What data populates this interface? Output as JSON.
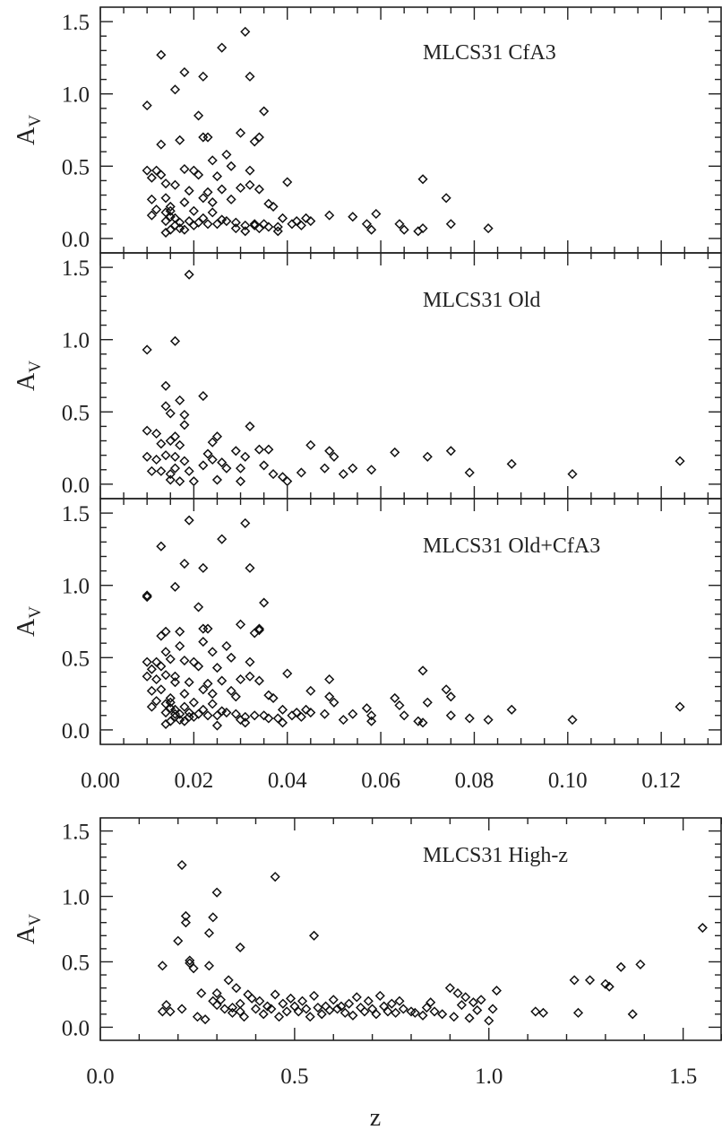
{
  "chart_data": [
    {
      "type": "scatter",
      "label": "MLCS31 CfA3",
      "ylabel": "A",
      "ylabel_sub": "V",
      "xlim": [
        0.0,
        0.133
      ],
      "ylim": [
        -0.1,
        1.6
      ],
      "xticks": [],
      "yticks": [
        "0.0",
        "0.5",
        "1.0",
        "1.5"
      ],
      "series": [
        {
          "x": [
            0.01,
            0.01,
            0.011,
            0.011,
            0.011,
            0.012,
            0.012,
            0.013,
            0.013,
            0.014,
            0.014,
            0.014,
            0.014,
            0.014,
            0.015,
            0.015,
            0.015,
            0.015,
            0.016,
            0.016,
            0.016,
            0.017,
            0.017,
            0.017,
            0.018,
            0.018,
            0.018,
            0.019,
            0.019,
            0.02,
            0.02,
            0.02,
            0.021,
            0.021,
            0.022,
            0.022,
            0.022,
            0.023,
            0.023,
            0.023,
            0.024,
            0.024,
            0.024,
            0.025,
            0.025,
            0.026,
            0.026,
            0.027,
            0.027,
            0.028,
            0.028,
            0.029,
            0.029,
            0.03,
            0.03,
            0.031,
            0.031,
            0.032,
            0.032,
            0.033,
            0.033,
            0.033,
            0.034,
            0.034,
            0.034,
            0.035,
            0.035,
            0.036,
            0.036,
            0.037,
            0.038,
            0.038,
            0.039,
            0.04,
            0.041,
            0.042,
            0.043,
            0.044,
            0.045,
            0.049,
            0.054,
            0.057,
            0.058,
            0.059,
            0.064,
            0.065,
            0.068,
            0.069,
            0.069,
            0.074,
            0.075,
            0.083,
            0.016,
            0.018,
            0.022,
            0.031,
            0.026,
            0.021,
            0.013,
            0.032
          ],
          "y": [
            0.92,
            0.47,
            0.42,
            0.27,
            0.16,
            0.47,
            0.2,
            0.65,
            0.44,
            0.12,
            0.18,
            0.38,
            0.28,
            0.04,
            0.15,
            0.22,
            0.19,
            0.06,
            0.09,
            0.14,
            0.37,
            0.68,
            0.11,
            0.07,
            0.25,
            0.48,
            0.06,
            0.33,
            0.12,
            0.09,
            0.19,
            0.47,
            0.44,
            0.11,
            0.7,
            0.28,
            0.14,
            0.7,
            0.1,
            0.32,
            0.54,
            0.18,
            0.25,
            0.1,
            0.43,
            0.13,
            0.34,
            0.58,
            0.12,
            0.27,
            0.5,
            0.11,
            0.07,
            0.73,
            0.35,
            0.05,
            0.09,
            0.47,
            0.37,
            0.67,
            0.1,
            0.09,
            0.7,
            0.34,
            0.07,
            0.88,
            0.1,
            0.24,
            0.08,
            0.22,
            0.08,
            0.05,
            0.14,
            0.39,
            0.1,
            0.12,
            0.09,
            0.14,
            0.12,
            0.16,
            0.15,
            0.1,
            0.06,
            0.17,
            0.1,
            0.06,
            0.05,
            0.07,
            0.41,
            0.28,
            0.1,
            0.07,
            1.03,
            1.15,
            1.12,
            1.43,
            1.32,
            0.85,
            1.27,
            1.12
          ],
          "marker": "diamond"
        }
      ]
    },
    {
      "type": "scatter",
      "label": "MLCS31 Old",
      "ylabel": "A",
      "ylabel_sub": "V",
      "xlim": [
        0.0,
        0.133
      ],
      "ylim": [
        -0.1,
        1.6
      ],
      "xticks": [],
      "yticks": [
        "0.0",
        "0.5",
        "1.0",
        "1.5"
      ],
      "series": [
        {
          "x": [
            0.01,
            0.01,
            0.011,
            0.012,
            0.012,
            0.013,
            0.013,
            0.014,
            0.014,
            0.015,
            0.015,
            0.015,
            0.016,
            0.016,
            0.016,
            0.017,
            0.017,
            0.017,
            0.018,
            0.018,
            0.019,
            0.02,
            0.022,
            0.022,
            0.023,
            0.024,
            0.024,
            0.025,
            0.025,
            0.026,
            0.027,
            0.029,
            0.03,
            0.03,
            0.031,
            0.032,
            0.034,
            0.035,
            0.036,
            0.037,
            0.039,
            0.04,
            0.043,
            0.045,
            0.048,
            0.049,
            0.05,
            0.052,
            0.054,
            0.058,
            0.063,
            0.07,
            0.075,
            0.079,
            0.088,
            0.101,
            0.124,
            0.019,
            0.016,
            0.01,
            0.014,
            0.018,
            0.015
          ],
          "y": [
            0.37,
            0.19,
            0.09,
            0.35,
            0.17,
            0.28,
            0.09,
            0.54,
            0.2,
            0.49,
            0.07,
            0.3,
            0.33,
            0.11,
            0.19,
            0.58,
            0.27,
            0.02,
            0.16,
            0.48,
            0.09,
            0.02,
            0.61,
            0.13,
            0.21,
            0.29,
            0.17,
            0.03,
            0.33,
            0.15,
            0.11,
            0.23,
            0.02,
            0.11,
            0.19,
            0.4,
            0.24,
            0.13,
            0.24,
            0.07,
            0.05,
            0.02,
            0.08,
            0.27,
            0.11,
            0.23,
            0.19,
            0.07,
            0.11,
            0.1,
            0.22,
            0.19,
            0.23,
            0.08,
            0.14,
            0.07,
            0.16,
            1.45,
            0.99,
            0.93,
            0.68,
            0.41,
            0.03
          ],
          "marker": "diamond"
        }
      ]
    },
    {
      "type": "scatter",
      "label": "MLCS31 Old+CfA3",
      "ylabel": "A",
      "ylabel_sub": "V",
      "xlim": [
        0.0,
        0.133
      ],
      "ylim": [
        -0.1,
        1.6
      ],
      "xticks": [
        "0.00",
        "0.02",
        "0.04",
        "0.06",
        "0.08",
        "0.10",
        "0.12"
      ],
      "yticks": [
        "0.0",
        "0.5",
        "1.0",
        "1.5"
      ],
      "series": [
        {
          "x": [
            0.01,
            0.01,
            0.01,
            0.011,
            0.011,
            0.011,
            0.012,
            0.012,
            0.012,
            0.013,
            0.013,
            0.013,
            0.014,
            0.014,
            0.014,
            0.014,
            0.014,
            0.015,
            0.015,
            0.015,
            0.015,
            0.015,
            0.016,
            0.016,
            0.016,
            0.016,
            0.016,
            0.017,
            0.017,
            0.017,
            0.017,
            0.018,
            0.018,
            0.018,
            0.018,
            0.019,
            0.019,
            0.019,
            0.02,
            0.02,
            0.02,
            0.021,
            0.021,
            0.022,
            0.022,
            0.022,
            0.022,
            0.023,
            0.023,
            0.023,
            0.024,
            0.024,
            0.024,
            0.025,
            0.025,
            0.025,
            0.026,
            0.026,
            0.027,
            0.027,
            0.028,
            0.028,
            0.029,
            0.029,
            0.03,
            0.03,
            0.03,
            0.031,
            0.031,
            0.032,
            0.032,
            0.033,
            0.033,
            0.034,
            0.034,
            0.035,
            0.035,
            0.036,
            0.036,
            0.037,
            0.038,
            0.039,
            0.039,
            0.04,
            0.041,
            0.042,
            0.043,
            0.044,
            0.045,
            0.045,
            0.048,
            0.049,
            0.049,
            0.05,
            0.052,
            0.054,
            0.057,
            0.058,
            0.058,
            0.063,
            0.064,
            0.065,
            0.068,
            0.069,
            0.069,
            0.07,
            0.074,
            0.075,
            0.075,
            0.079,
            0.083,
            0.088,
            0.101,
            0.124,
            0.019,
            0.016,
            0.01,
            0.018,
            0.022,
            0.031,
            0.026,
            0.021,
            0.013,
            0.032,
            0.034,
            0.014
          ],
          "y": [
            0.92,
            0.47,
            0.37,
            0.42,
            0.27,
            0.16,
            0.47,
            0.35,
            0.2,
            0.65,
            0.44,
            0.28,
            0.12,
            0.18,
            0.38,
            0.54,
            0.04,
            0.15,
            0.22,
            0.19,
            0.49,
            0.06,
            0.09,
            0.14,
            0.37,
            0.33,
            0.11,
            0.68,
            0.11,
            0.07,
            0.58,
            0.25,
            0.48,
            0.06,
            0.16,
            0.33,
            0.12,
            0.09,
            0.09,
            0.19,
            0.47,
            0.44,
            0.11,
            0.7,
            0.28,
            0.14,
            0.61,
            0.7,
            0.1,
            0.32,
            0.54,
            0.18,
            0.25,
            0.1,
            0.43,
            0.03,
            0.13,
            0.34,
            0.58,
            0.12,
            0.27,
            0.5,
            0.11,
            0.23,
            0.07,
            0.73,
            0.35,
            0.05,
            0.09,
            0.47,
            0.37,
            0.67,
            0.1,
            0.7,
            0.34,
            0.88,
            0.1,
            0.24,
            0.08,
            0.22,
            0.08,
            0.05,
            0.14,
            0.39,
            0.1,
            0.12,
            0.09,
            0.14,
            0.27,
            0.12,
            0.11,
            0.23,
            0.35,
            0.19,
            0.07,
            0.11,
            0.15,
            0.1,
            0.06,
            0.22,
            0.17,
            0.1,
            0.06,
            0.05,
            0.41,
            0.19,
            0.28,
            0.23,
            0.1,
            0.08,
            0.07,
            0.14,
            0.07,
            0.16,
            1.45,
            0.99,
            0.93,
            1.15,
            1.12,
            1.43,
            1.32,
            0.85,
            1.27,
            1.12,
            0.69,
            0.68
          ],
          "marker": "diamond"
        }
      ]
    },
    {
      "type": "scatter",
      "label": "MLCS31 High-z",
      "ylabel": "A",
      "ylabel_sub": "V",
      "xlabel": "z",
      "xlim": [
        0.0,
        1.6
      ],
      "ylim": [
        -0.1,
        1.6
      ],
      "xticks": [
        "0.0",
        "0.5",
        "1.0",
        "1.5"
      ],
      "yticks": [
        "0.0",
        "0.5",
        "1.0",
        "1.5"
      ],
      "series": [
        {
          "x": [
            0.16,
            0.17,
            0.18,
            0.2,
            0.21,
            0.22,
            0.23,
            0.24,
            0.25,
            0.26,
            0.27,
            0.28,
            0.29,
            0.3,
            0.3,
            0.31,
            0.32,
            0.33,
            0.34,
            0.34,
            0.35,
            0.36,
            0.36,
            0.37,
            0.38,
            0.39,
            0.4,
            0.41,
            0.42,
            0.43,
            0.44,
            0.45,
            0.46,
            0.47,
            0.48,
            0.49,
            0.5,
            0.51,
            0.52,
            0.53,
            0.54,
            0.55,
            0.56,
            0.57,
            0.58,
            0.59,
            0.6,
            0.61,
            0.62,
            0.63,
            0.64,
            0.65,
            0.66,
            0.67,
            0.68,
            0.69,
            0.7,
            0.71,
            0.72,
            0.73,
            0.74,
            0.75,
            0.76,
            0.77,
            0.78,
            0.8,
            0.81,
            0.83,
            0.84,
            0.85,
            0.86,
            0.88,
            0.9,
            0.91,
            0.92,
            0.93,
            0.94,
            0.95,
            0.96,
            0.97,
            0.98,
            1.0,
            1.01,
            1.02,
            1.12,
            1.14,
            1.22,
            1.23,
            1.26,
            1.3,
            1.31,
            1.34,
            1.37,
            1.39,
            1.55,
            0.21,
            0.3,
            0.45,
            0.22,
            0.29,
            0.55,
            0.28,
            0.36,
            0.23,
            0.16
          ],
          "y": [
            0.47,
            0.17,
            0.12,
            0.66,
            0.14,
            0.8,
            0.49,
            0.45,
            0.08,
            0.26,
            0.06,
            0.47,
            0.2,
            0.17,
            0.26,
            0.21,
            0.14,
            0.36,
            0.11,
            0.15,
            0.3,
            0.12,
            0.18,
            0.08,
            0.25,
            0.22,
            0.14,
            0.2,
            0.1,
            0.16,
            0.14,
            0.25,
            0.08,
            0.18,
            0.12,
            0.22,
            0.16,
            0.12,
            0.2,
            0.14,
            0.08,
            0.24,
            0.15,
            0.1,
            0.16,
            0.13,
            0.21,
            0.14,
            0.16,
            0.11,
            0.18,
            0.09,
            0.23,
            0.15,
            0.12,
            0.2,
            0.14,
            0.1,
            0.24,
            0.16,
            0.12,
            0.18,
            0.11,
            0.2,
            0.14,
            0.12,
            0.11,
            0.09,
            0.15,
            0.19,
            0.12,
            0.1,
            0.3,
            0.08,
            0.26,
            0.17,
            0.23,
            0.07,
            0.19,
            0.13,
            0.21,
            0.05,
            0.14,
            0.28,
            0.12,
            0.11,
            0.36,
            0.11,
            0.36,
            0.33,
            0.31,
            0.46,
            0.1,
            0.48,
            0.76,
            1.24,
            1.03,
            1.15,
            0.85,
            0.84,
            0.7,
            0.72,
            0.61,
            0.51,
            0.12
          ],
          "marker": "diamond"
        }
      ]
    }
  ]
}
